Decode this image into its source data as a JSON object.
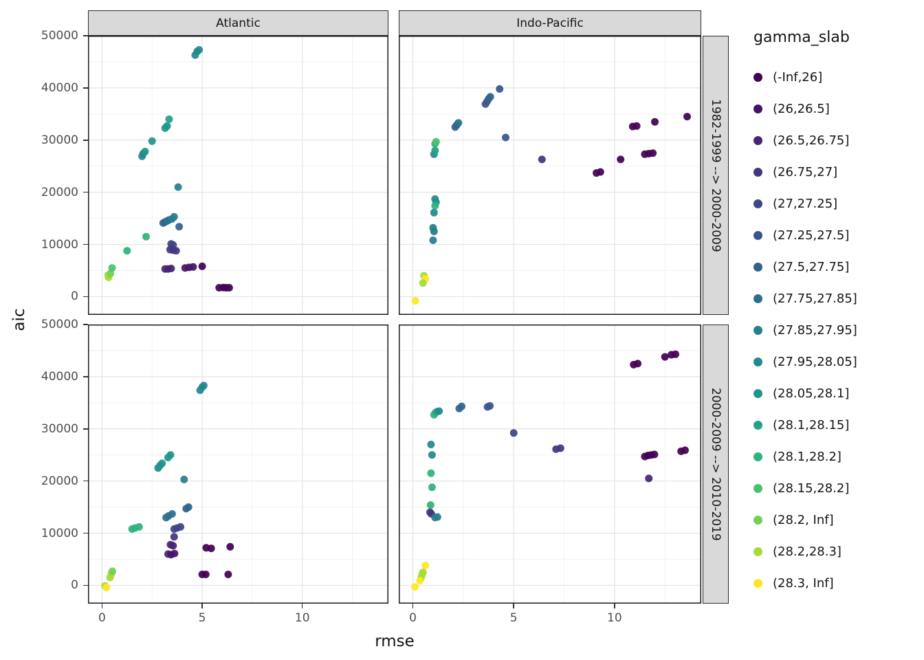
{
  "chart_data": {
    "type": "scatter",
    "title": "",
    "xlabel": "rmse",
    "ylabel": "aic",
    "x_tick_labels": [
      "0",
      "5",
      "10"
    ],
    "x_tick_values": [
      0,
      5,
      10
    ],
    "y_tick_labels": [
      "0",
      "10000",
      "20000",
      "30000",
      "40000",
      "50000"
    ],
    "y_tick_values": [
      0,
      10000,
      20000,
      30000,
      40000,
      50000
    ],
    "x_minor": [
      2.5,
      7.5,
      12.5
    ],
    "y_minor": [
      5000,
      15000,
      25000,
      35000,
      45000
    ],
    "xlim": [
      -0.7,
      14.3
    ],
    "ylim": [
      -3500,
      50000
    ],
    "grid": true,
    "legend_position": "right",
    "facet_cols": [
      "Atlantic",
      "Indo-Pacific"
    ],
    "facet_rows": [
      "1982-1999 --> 2000-2009",
      "2000-2009 --> 2010-2019"
    ],
    "legend_title": "gamma_slab",
    "categories": [
      {
        "label": "(-Inf,26]",
        "color": "#440154"
      },
      {
        "label": "(26,26.5]",
        "color": "#471365"
      },
      {
        "label": "(26.5,26.75]",
        "color": "#472475"
      },
      {
        "label": "(26.75,27]",
        "color": "#453580"
      },
      {
        "label": "(27,27.25]",
        "color": "#3f4587"
      },
      {
        "label": "(27.25,27.5]",
        "color": "#39558c"
      },
      {
        "label": "(27.5,27.75]",
        "color": "#32638e"
      },
      {
        "label": "(27.75,27.85]",
        "color": "#2d708e"
      },
      {
        "label": "(27.85,27.95]",
        "color": "#287d8e"
      },
      {
        "label": "(27.95,28.05]",
        "color": "#23898e"
      },
      {
        "label": "(28.05,28.1]",
        "color": "#1f958b"
      },
      {
        "label": "(28.1,28.15]",
        "color": "#22a286"
      },
      {
        "label": "(28.1,28.2]",
        "color": "#2eb37c"
      },
      {
        "label": "(28.15,28.2]",
        "color": "#4ac16d"
      },
      {
        "label": "(28.2, Inf]",
        "color": "#73d056"
      },
      {
        "label": "(28.2,28.3]",
        "color": "#a5db36"
      },
      {
        "label": "(28.3, Inf]",
        "color": "#fde725"
      }
    ],
    "panels": [
      {
        "facet_col": "Atlantic",
        "facet_row": "1982-1999 --> 2000-2009",
        "points": [
          [
            4.65,
            46300,
            9
          ],
          [
            4.75,
            47000,
            9
          ],
          [
            4.85,
            47300,
            9
          ],
          [
            2.0,
            26900,
            9
          ],
          [
            2.05,
            27400,
            9
          ],
          [
            2.15,
            27800,
            10
          ],
          [
            2.5,
            29800,
            10
          ],
          [
            3.15,
            32300,
            10
          ],
          [
            3.25,
            32700,
            10
          ],
          [
            3.35,
            34000,
            11
          ],
          [
            3.8,
            21000,
            8
          ],
          [
            3.05,
            14100,
            6
          ],
          [
            3.15,
            14300,
            6
          ],
          [
            3.25,
            14500,
            7
          ],
          [
            3.35,
            14700,
            7
          ],
          [
            3.5,
            14900,
            8
          ],
          [
            3.6,
            15300,
            8
          ],
          [
            3.85,
            13400,
            6
          ],
          [
            3.45,
            10100,
            4
          ],
          [
            3.55,
            9900,
            4
          ],
          [
            3.4,
            9000,
            3
          ],
          [
            3.55,
            8900,
            3
          ],
          [
            3.7,
            8800,
            3
          ],
          [
            1.25,
            8800,
            12
          ],
          [
            2.2,
            11500,
            12
          ],
          [
            3.15,
            5300,
            2
          ],
          [
            3.3,
            5300,
            2
          ],
          [
            3.45,
            5400,
            2
          ],
          [
            4.15,
            5500,
            1
          ],
          [
            4.35,
            5600,
            1
          ],
          [
            4.55,
            5700,
            1
          ],
          [
            5.0,
            5800,
            0
          ],
          [
            0.3,
            4100,
            15
          ],
          [
            0.33,
            3700,
            15
          ],
          [
            0.42,
            4400,
            14
          ],
          [
            0.5,
            5500,
            13
          ],
          [
            5.85,
            1700,
            0
          ],
          [
            6.05,
            1750,
            0
          ],
          [
            6.2,
            1700,
            0
          ],
          [
            6.35,
            1700,
            0
          ]
        ]
      },
      {
        "facet_col": "Indo-Pacific",
        "facet_row": "1982-1999 --> 2000-2009",
        "points": [
          [
            4.3,
            39800,
            5
          ],
          [
            3.6,
            36900,
            5
          ],
          [
            3.68,
            37400,
            5
          ],
          [
            3.76,
            37900,
            6
          ],
          [
            3.84,
            38300,
            6
          ],
          [
            2.1,
            32500,
            6
          ],
          [
            2.18,
            32900,
            6
          ],
          [
            2.26,
            33300,
            7
          ],
          [
            4.6,
            30500,
            5
          ],
          [
            1.1,
            29300,
            12
          ],
          [
            1.15,
            29700,
            13
          ],
          [
            1.05,
            27300,
            9
          ],
          [
            1.1,
            28000,
            11
          ],
          [
            6.4,
            26300,
            3
          ],
          [
            9.1,
            23700,
            0
          ],
          [
            9.3,
            23900,
            0
          ],
          [
            10.3,
            26300,
            0
          ],
          [
            10.9,
            32600,
            0
          ],
          [
            11.1,
            32700,
            0
          ],
          [
            12.0,
            33500,
            0
          ],
          [
            13.6,
            34500,
            0
          ],
          [
            11.5,
            27300,
            0
          ],
          [
            11.7,
            27400,
            0
          ],
          [
            11.9,
            27500,
            0
          ],
          [
            1.1,
            18700,
            9
          ],
          [
            1.15,
            18100,
            10
          ],
          [
            1.1,
            17400,
            12
          ],
          [
            1.05,
            16100,
            9
          ],
          [
            1.0,
            13200,
            8
          ],
          [
            1.05,
            12500,
            8
          ],
          [
            1.0,
            10800,
            8
          ],
          [
            0.55,
            4000,
            15
          ],
          [
            0.62,
            3400,
            16
          ],
          [
            0.5,
            2600,
            15
          ],
          [
            0.12,
            -800,
            16
          ]
        ]
      },
      {
        "facet_col": "Atlantic",
        "facet_row": "2000-2009 --> 2010-2019",
        "points": [
          [
            4.9,
            37400,
            9
          ],
          [
            5.0,
            38000,
            9
          ],
          [
            5.08,
            38300,
            9
          ],
          [
            2.8,
            22500,
            9
          ],
          [
            2.9,
            23000,
            10
          ],
          [
            3.0,
            23400,
            10
          ],
          [
            3.3,
            24500,
            10
          ],
          [
            3.42,
            25000,
            10
          ],
          [
            4.1,
            20300,
            8
          ],
          [
            4.2,
            14700,
            6
          ],
          [
            4.32,
            15000,
            6
          ],
          [
            3.2,
            13000,
            7
          ],
          [
            3.32,
            13300,
            7
          ],
          [
            3.5,
            13700,
            7
          ],
          [
            1.5,
            10800,
            12
          ],
          [
            1.65,
            11000,
            12
          ],
          [
            1.85,
            11200,
            12
          ],
          [
            3.6,
            10800,
            4
          ],
          [
            3.75,
            11000,
            4
          ],
          [
            3.92,
            11200,
            4
          ],
          [
            3.6,
            9300,
            3
          ],
          [
            3.42,
            7800,
            2
          ],
          [
            3.55,
            7600,
            2
          ],
          [
            5.2,
            7200,
            0
          ],
          [
            5.45,
            7100,
            0
          ],
          [
            6.4,
            7400,
            0
          ],
          [
            3.3,
            6000,
            2
          ],
          [
            3.45,
            5900,
            1
          ],
          [
            3.62,
            6100,
            1
          ],
          [
            5.0,
            2100,
            0
          ],
          [
            5.18,
            2100,
            0
          ],
          [
            6.3,
            2100,
            0
          ],
          [
            0.4,
            1500,
            15
          ],
          [
            0.46,
            2200,
            15
          ],
          [
            0.52,
            2700,
            14
          ],
          [
            0.15,
            -100,
            15
          ],
          [
            0.22,
            -400,
            16
          ]
        ]
      },
      {
        "facet_col": "Indo-Pacific",
        "facet_row": "2000-2009 --> 2010-2019",
        "points": [
          [
            10.95,
            42300,
            0
          ],
          [
            11.15,
            42500,
            0
          ],
          [
            12.5,
            43800,
            0
          ],
          [
            12.82,
            44200,
            0
          ],
          [
            13.02,
            44300,
            0
          ],
          [
            2.3,
            33900,
            6
          ],
          [
            2.42,
            34300,
            6
          ],
          [
            3.7,
            34200,
            5
          ],
          [
            3.82,
            34400,
            5
          ],
          [
            1.05,
            32700,
            12
          ],
          [
            1.12,
            33100,
            12
          ],
          [
            1.2,
            33300,
            11
          ],
          [
            1.3,
            33400,
            9
          ],
          [
            5.0,
            29200,
            4
          ],
          [
            7.1,
            26100,
            3
          ],
          [
            7.32,
            26300,
            3
          ],
          [
            11.5,
            24700,
            0
          ],
          [
            11.66,
            24900,
            0
          ],
          [
            11.82,
            25000,
            0
          ],
          [
            11.98,
            25100,
            0
          ],
          [
            13.3,
            25700,
            0
          ],
          [
            13.5,
            25900,
            0
          ],
          [
            11.7,
            20500,
            2
          ],
          [
            0.9,
            27000,
            9
          ],
          [
            0.95,
            25000,
            9
          ],
          [
            0.9,
            21500,
            12
          ],
          [
            0.95,
            18800,
            12
          ],
          [
            0.88,
            15400,
            12
          ],
          [
            0.85,
            14000,
            3
          ],
          [
            0.92,
            13700,
            3
          ],
          [
            1.1,
            13000,
            8
          ],
          [
            1.22,
            13100,
            8
          ],
          [
            0.62,
            3800,
            16
          ],
          [
            0.5,
            2500,
            15
          ],
          [
            0.45,
            2000,
            15
          ],
          [
            0.4,
            1400,
            15
          ],
          [
            0.35,
            900,
            16
          ],
          [
            0.1,
            -300,
            16
          ]
        ]
      }
    ]
  }
}
